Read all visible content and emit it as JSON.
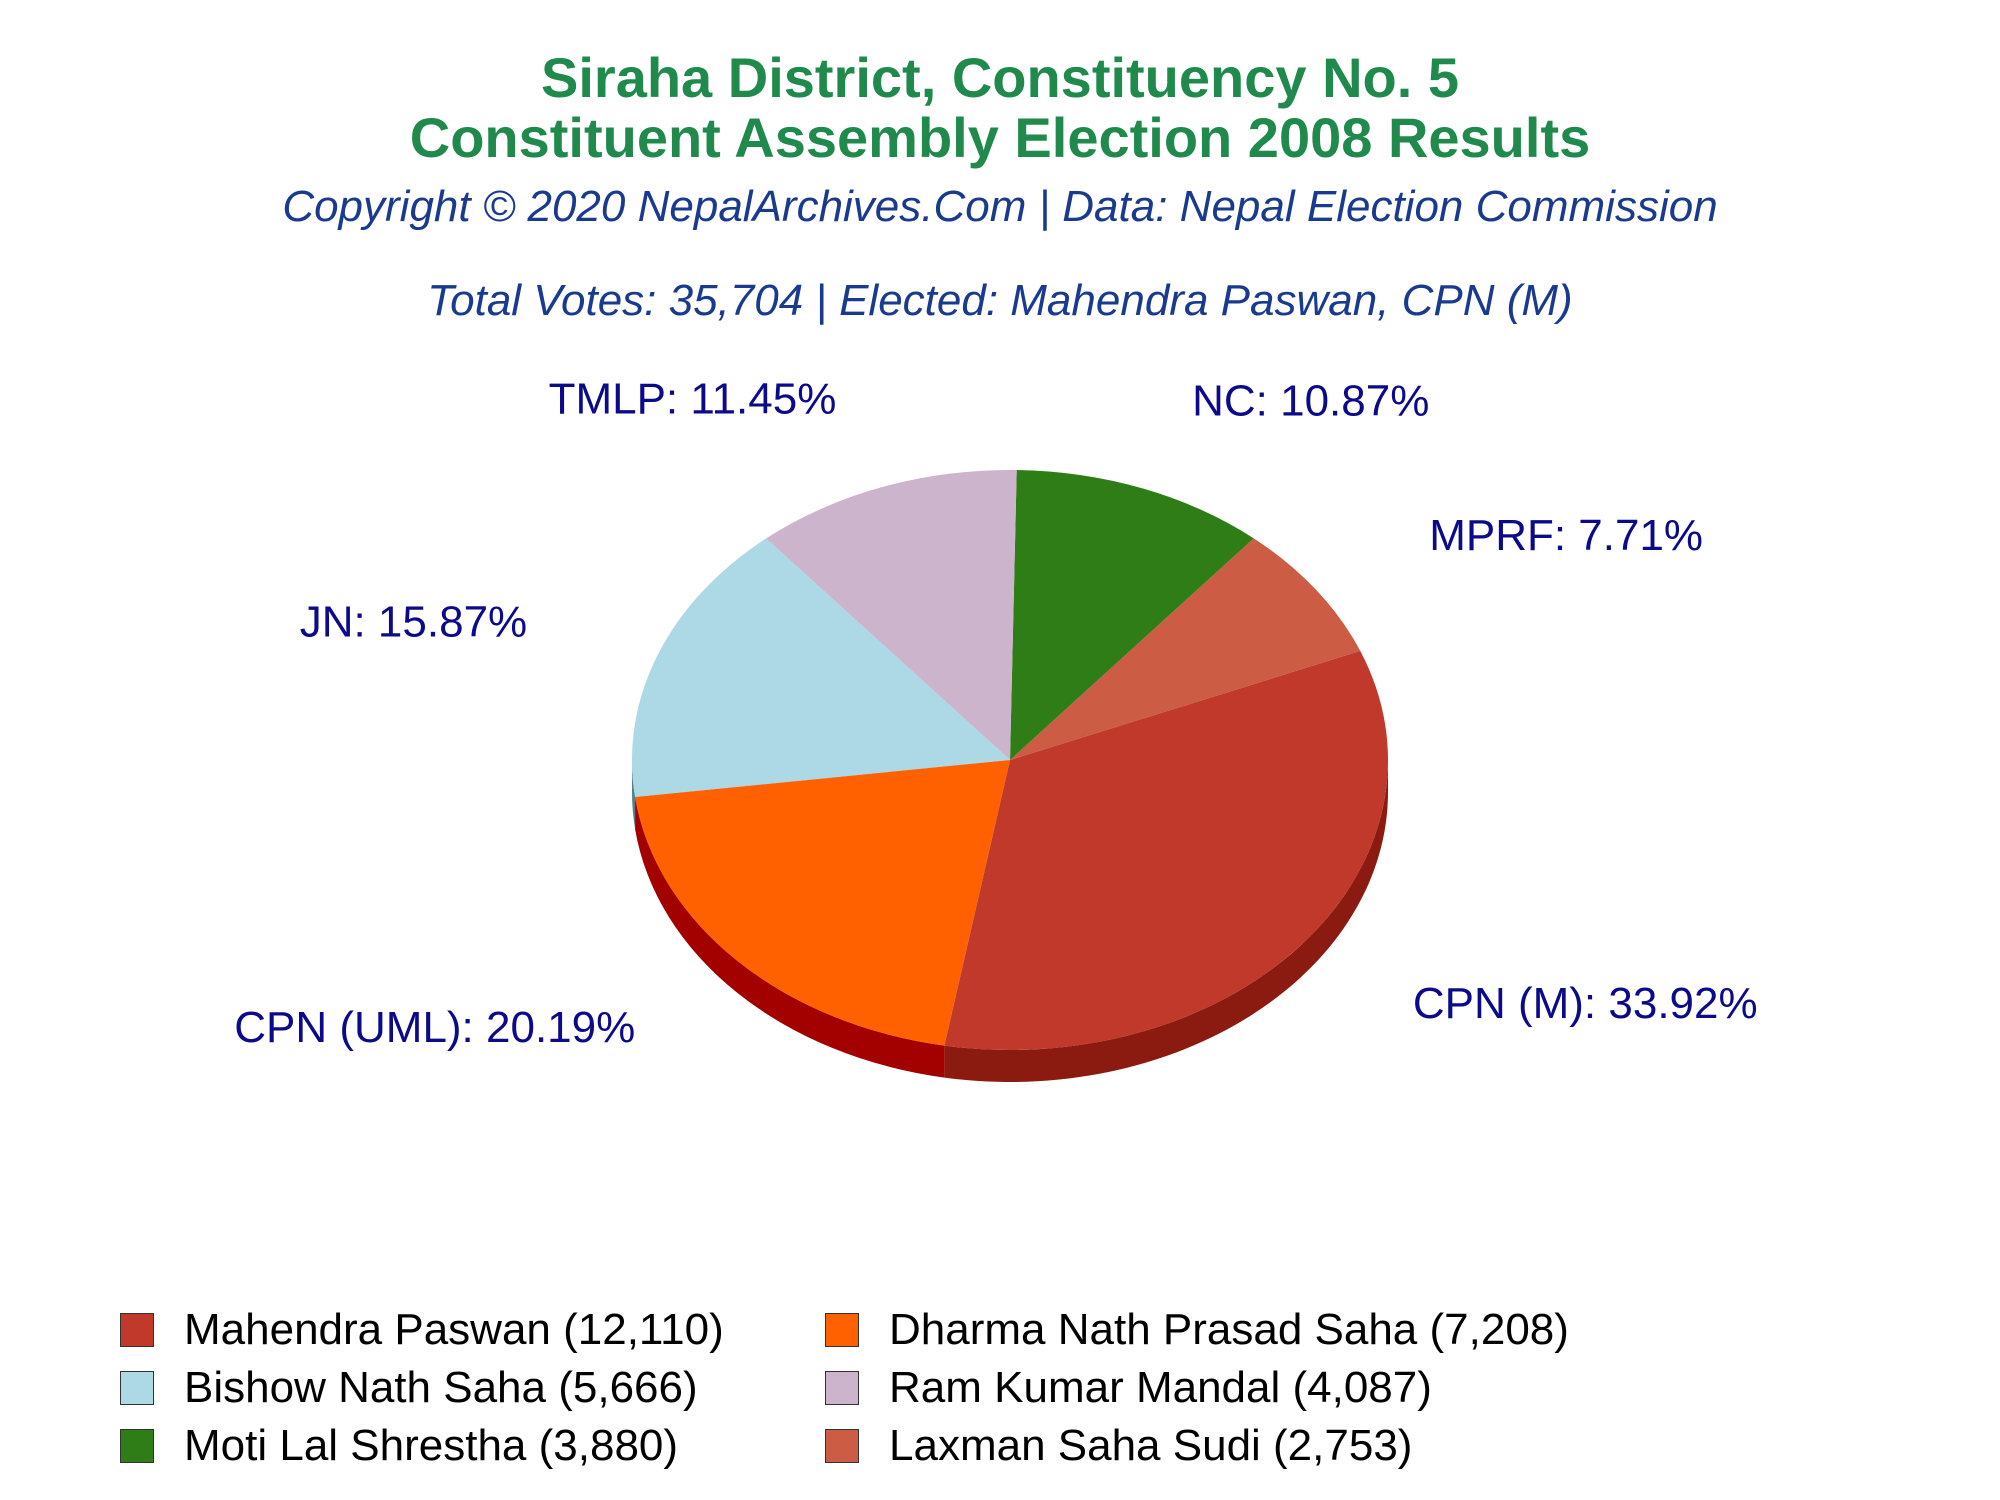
{
  "chart_data": {
    "type": "pie",
    "title": "Siraha District, Constituency No. 5",
    "title_line2": "Constituent Assembly Election 2008 Results",
    "subtitle": "Copyright © 2020 NepalArchives.Com | Data: Nepal Election Commission",
    "summary": "Total Votes: 35,704 | Elected: Mahendra Paswan, CPN (M)",
    "slices": [
      {
        "party": "CPN (M)",
        "percent": 33.92,
        "label": "CPN (M): 33.92%",
        "color": "#c0392b",
        "side_color": "#8b1a10"
      },
      {
        "party": "MPRF",
        "percent": 7.71,
        "label": "MPRF: 7.71%",
        "color": "#cd5c45",
        "side_color": "#8e3a29"
      },
      {
        "party": "NC",
        "percent": 10.87,
        "label": "NC: 10.87%",
        "color": "#2e7d17",
        "side_color": "#123c08"
      },
      {
        "party": "TMLP",
        "percent": 11.45,
        "label": "TMLP: 11.45%",
        "color": "#cbb4cc",
        "side_color": "#7a6479"
      },
      {
        "party": "JN",
        "percent": 15.87,
        "label": "JN: 15.87%",
        "color": "#add8e6",
        "side_color": "#52808e"
      },
      {
        "party": "CPN (UML)",
        "percent": 20.19,
        "label": "CPN (UML): 20.19%",
        "color": "#ff6100",
        "side_color": "#a30000"
      }
    ],
    "legend_position": "bottom",
    "legend": [
      {
        "label": "Mahendra Paswan (12,110)",
        "color": "#c0392b"
      },
      {
        "label": "Dharma Nath Prasad Saha (7,208)",
        "color": "#ff6100"
      },
      {
        "label": "Bishow Nath Saha (5,666)",
        "color": "#add8e6"
      },
      {
        "label": "Ram Kumar Mandal (4,087)",
        "color": "#cbb4cc"
      },
      {
        "label": "Moti Lal Shrestha (3,880)",
        "color": "#2e7d17"
      },
      {
        "label": "Laxman Saha Sudi (2,753)",
        "color": "#cd5c45"
      }
    ]
  }
}
